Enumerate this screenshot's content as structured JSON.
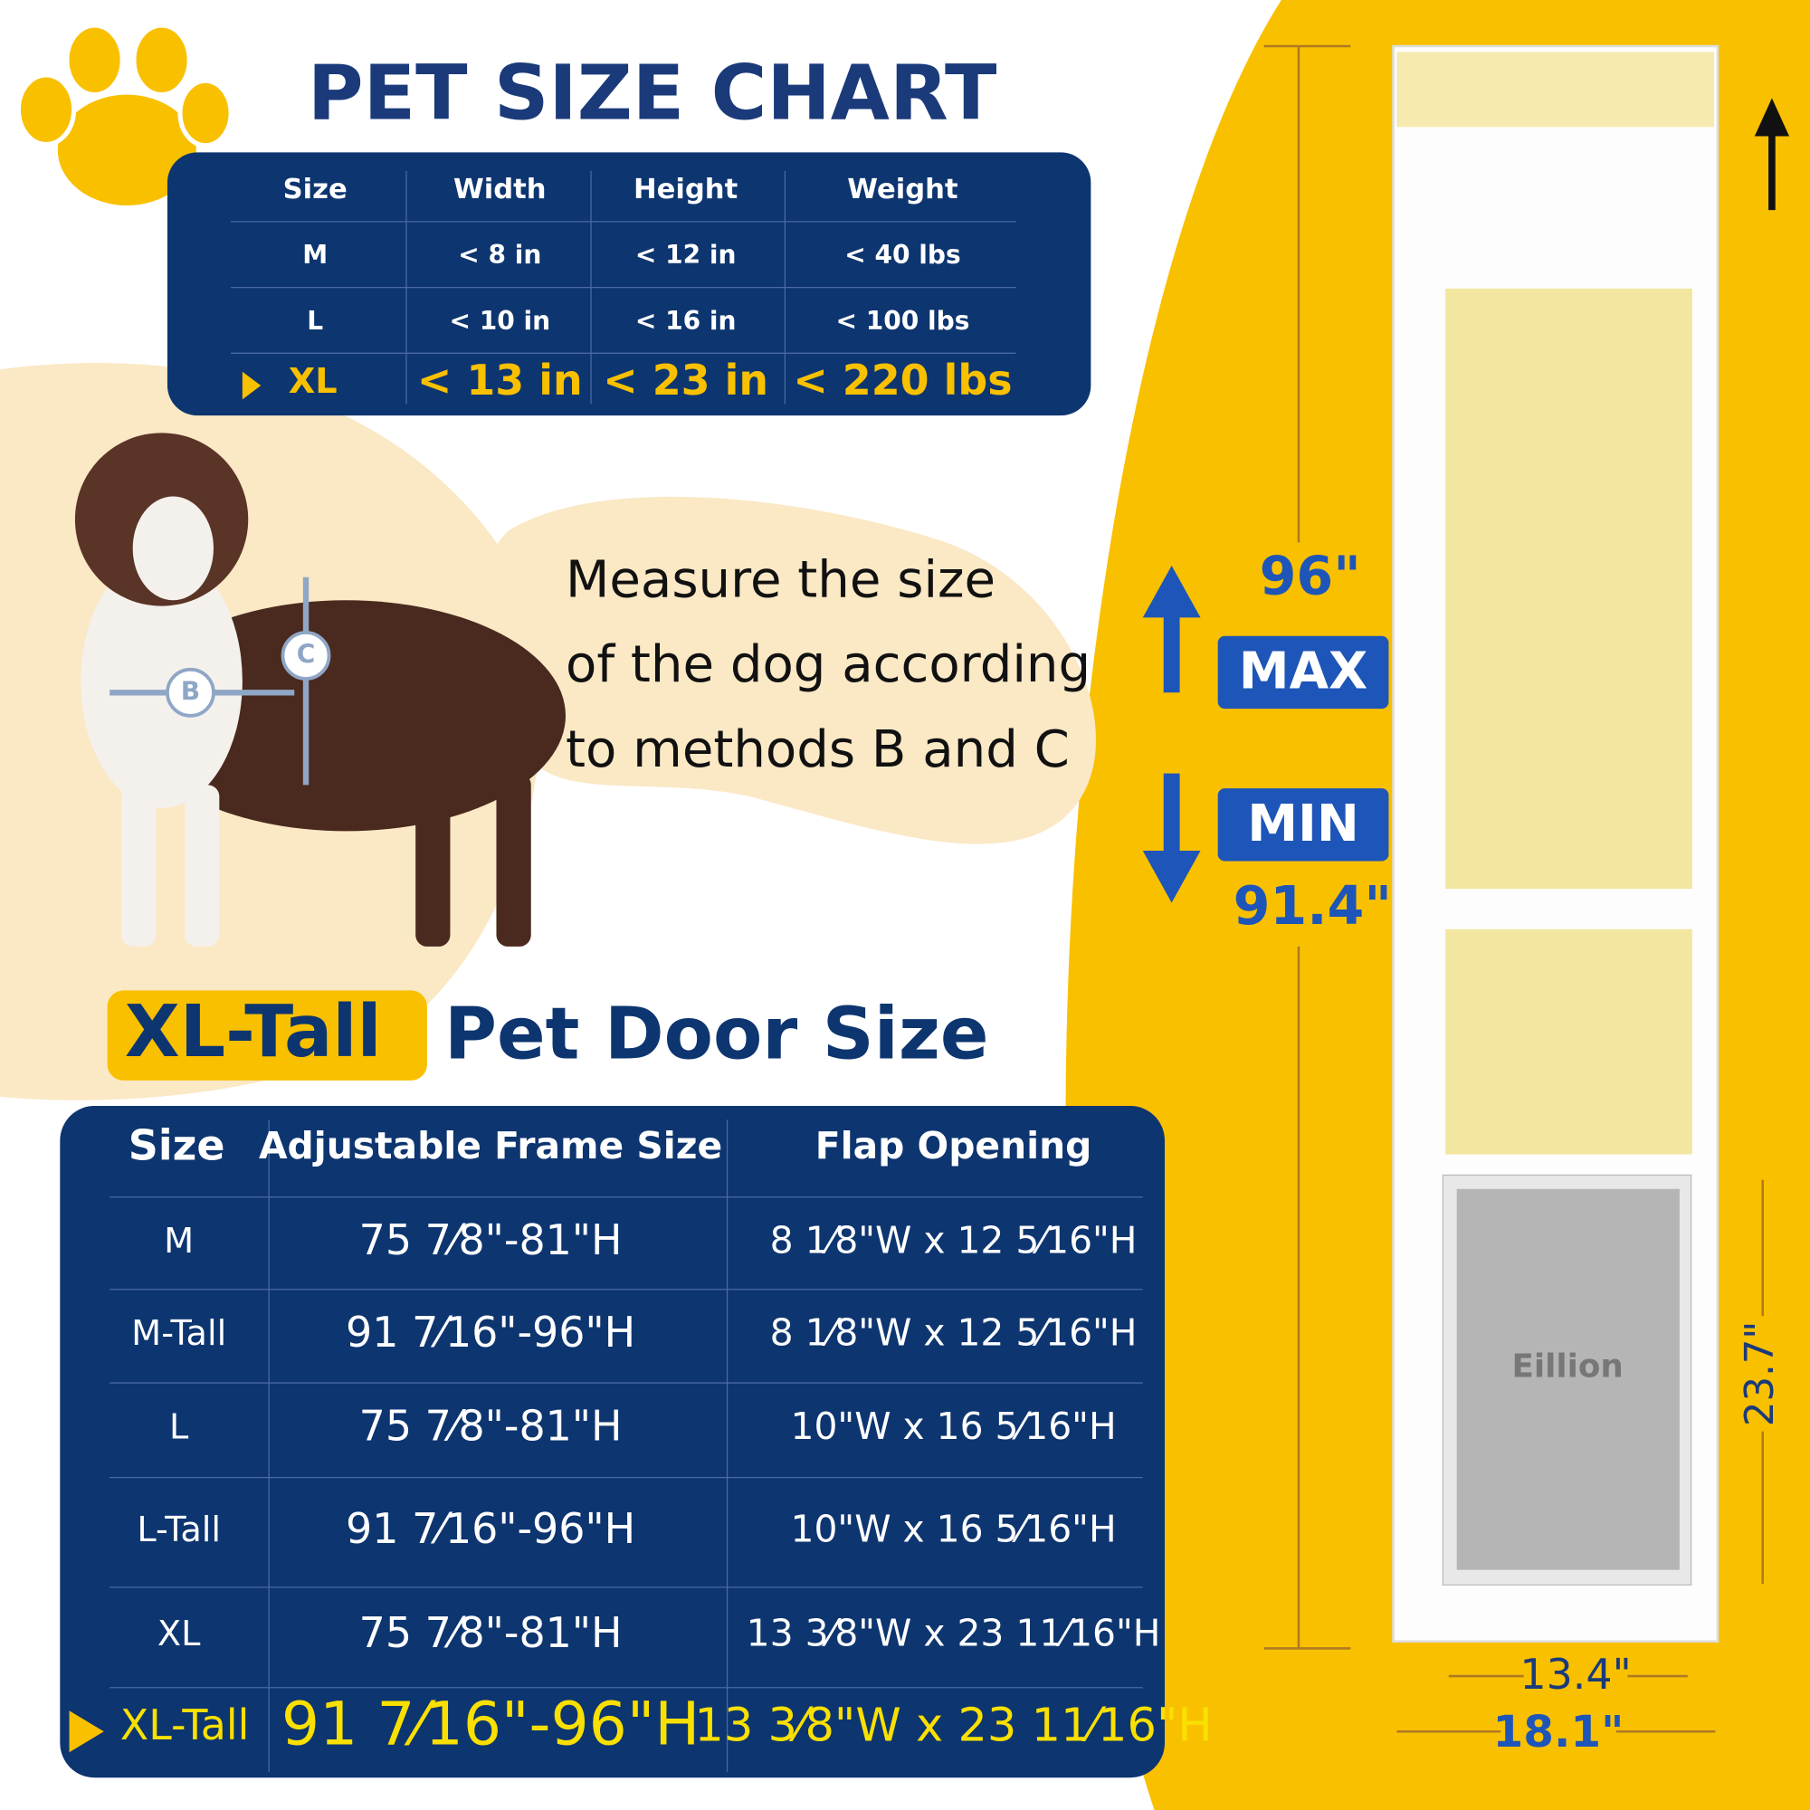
{
  "header": {
    "title": "PET SIZE CHART"
  },
  "pet_table": {
    "columns": [
      "Size",
      "Width",
      "Height",
      "Weight"
    ],
    "rows": [
      [
        "M",
        "< 8 in",
        "< 12 in",
        "< 40 lbs"
      ],
      [
        "L",
        "< 10 in",
        "< 16 in",
        "< 100 lbs"
      ],
      [
        "XL",
        "< 13 in",
        "< 23 in",
        "< 220 lbs"
      ]
    ]
  },
  "dog": {
    "label_b": "B",
    "label_c": "C"
  },
  "note": [
    "Measure the size",
    "of the dog according",
    "to methods B and C"
  ],
  "door_title": {
    "highlight": "XL-Tall",
    "rest": "Pet Door Size"
  },
  "door_table": {
    "columns": [
      "Size",
      "Adjustable Frame Size",
      "Flap Opening"
    ],
    "rows": [
      [
        "M",
        "75 7⁄8\"-81\"H",
        "8 1⁄8\"W x 12 5⁄16\"H"
      ],
      [
        "M-Tall",
        "91 7⁄16\"-96\"H",
        "8 1⁄8\"W x 12 5⁄16\"H"
      ],
      [
        "L",
        "75 7⁄8\"-81\"H",
        "10\"W x 16 5⁄16\"H"
      ],
      [
        "L-Tall",
        "91 7⁄16\"-96\"H",
        "10\"W x 16 5⁄16\"H"
      ],
      [
        "XL",
        "75 7⁄8\"-81\"H",
        "13 3⁄8\"W x 23 11⁄16\"H"
      ],
      [
        "XL-Tall",
        "91 7⁄16\"-96\"H",
        "13 3⁄8\"W x 23 11⁄16\"H"
      ]
    ]
  },
  "door": {
    "height_max": "96\"",
    "max_label": "MAX",
    "min_label": "MIN",
    "height_min": "91.4\"",
    "flap_height": "23.7\"",
    "inner_width": "13.4\"",
    "outer_width": "18.1\"",
    "brand": "Eillion"
  }
}
